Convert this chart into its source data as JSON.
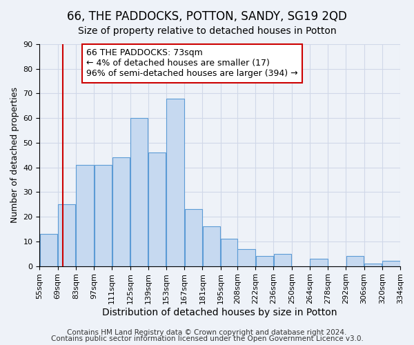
{
  "title": "66, THE PADDOCKS, POTTON, SANDY, SG19 2QD",
  "subtitle": "Size of property relative to detached houses in Potton",
  "xlabel": "Distribution of detached houses by size in Potton",
  "ylabel": "Number of detached properties",
  "bar_left_edges": [
    55,
    69,
    83,
    97,
    111,
    125,
    139,
    153,
    167,
    181,
    195,
    208,
    222,
    236,
    250,
    264,
    278,
    292,
    306,
    320
  ],
  "bar_widths": [
    14,
    14,
    14,
    14,
    14,
    14,
    14,
    14,
    14,
    14,
    13,
    14,
    14,
    14,
    14,
    14,
    14,
    14,
    14,
    14
  ],
  "bar_heights": [
    13,
    25,
    41,
    41,
    44,
    60,
    46,
    68,
    23,
    16,
    11,
    7,
    4,
    5,
    0,
    3,
    0,
    4,
    1,
    2
  ],
  "bar_color": "#c6d9f0",
  "bar_edge_color": "#5b9bd5",
  "x_tick_labels": [
    "55sqm",
    "69sqm",
    "83sqm",
    "97sqm",
    "111sqm",
    "125sqm",
    "139sqm",
    "153sqm",
    "167sqm",
    "181sqm",
    "195sqm",
    "208sqm",
    "222sqm",
    "236sqm",
    "250sqm",
    "264sqm",
    "278sqm",
    "292sqm",
    "306sqm",
    "320sqm",
    "334sqm"
  ],
  "ylim": [
    0,
    90
  ],
  "yticks": [
    0,
    10,
    20,
    30,
    40,
    50,
    60,
    70,
    80,
    90
  ],
  "vline_x": 73,
  "vline_color": "#cc0000",
  "annotation_line1": "66 THE PADDOCKS: 73sqm",
  "annotation_line2": "← 4% of detached houses are smaller (17)",
  "annotation_line3": "96% of semi-detached houses are larger (394) →",
  "annotation_box_edge_color": "#cc0000",
  "footnote1": "Contains HM Land Registry data © Crown copyright and database right 2024.",
  "footnote2": "Contains public sector information licensed under the Open Government Licence v3.0.",
  "title_fontsize": 12,
  "subtitle_fontsize": 10,
  "xlabel_fontsize": 10,
  "ylabel_fontsize": 9,
  "tick_fontsize": 8,
  "annotation_fontsize": 9,
  "footnote_fontsize": 7.5,
  "grid_color": "#d0d8e8",
  "background_color": "#eef2f8"
}
